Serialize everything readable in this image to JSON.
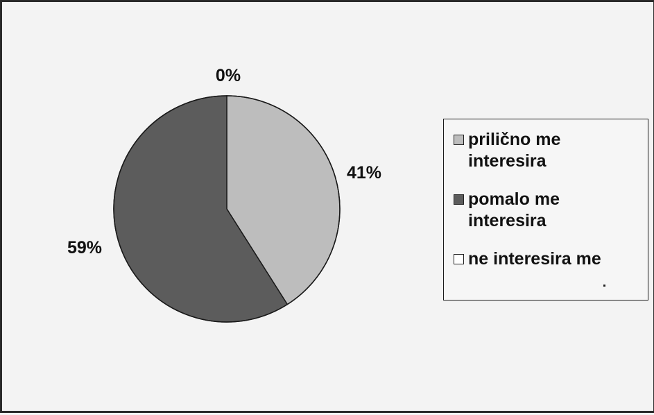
{
  "chart_data": {
    "type": "pie",
    "series": [
      {
        "name": "prilično me interesira",
        "value": 41,
        "label": "41%",
        "color": "#bdbdbd"
      },
      {
        "name": "pomalo me interesira",
        "value": 59,
        "label": "59%",
        "color": "#5c5c5c"
      },
      {
        "name": "ne interesira me",
        "value": 0,
        "label": "0%",
        "color": "#ffffff"
      }
    ],
    "start_angle_deg": 0,
    "direction": "clockwise",
    "legend": {
      "placement": "right",
      "items": [
        {
          "line1": "prilično me",
          "line2": "interesira",
          "color": "#bdbdbd"
        },
        {
          "line1": "pomalo me",
          "line2": "interesira",
          "color": "#5c5c5c"
        },
        {
          "line1": "ne interesira me",
          "line2": "",
          "color": "#ffffff"
        }
      ]
    }
  }
}
